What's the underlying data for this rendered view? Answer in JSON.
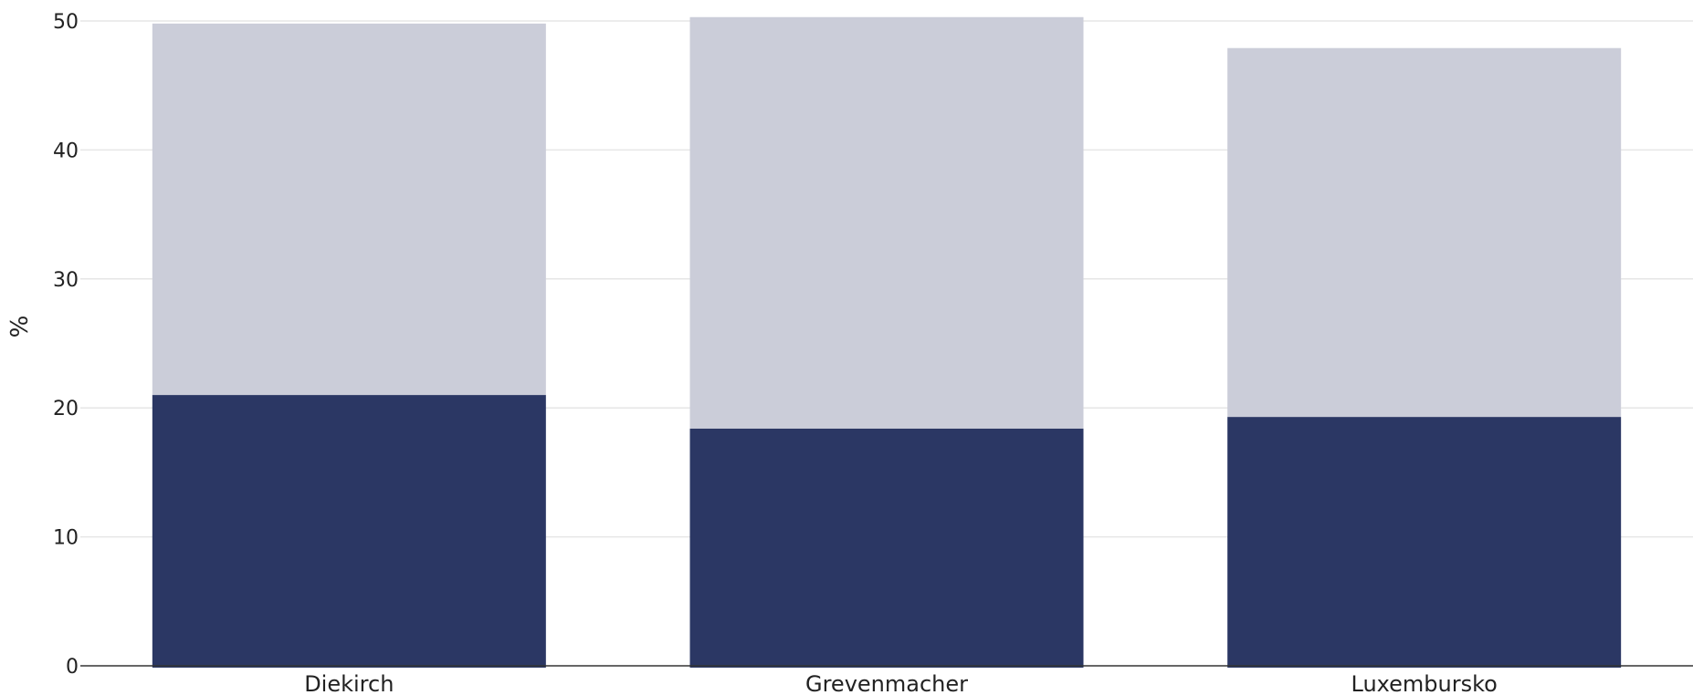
{
  "chart_data": {
    "type": "bar",
    "stacked": true,
    "title": "",
    "xlabel": "",
    "ylabel": "%",
    "ylim": [
      0,
      50
    ],
    "yticks": [
      0,
      10,
      20,
      30,
      40,
      50
    ],
    "grid": true,
    "categories": [
      "Diekirch",
      "Grevenmacher",
      "Luxembursko"
    ],
    "series": [
      {
        "values": [
          21.0,
          18.4,
          19.3
        ],
        "color": "#2b3764"
      },
      {
        "values": [
          28.8,
          31.9,
          28.6
        ],
        "color": "#cbcdd9"
      }
    ]
  }
}
